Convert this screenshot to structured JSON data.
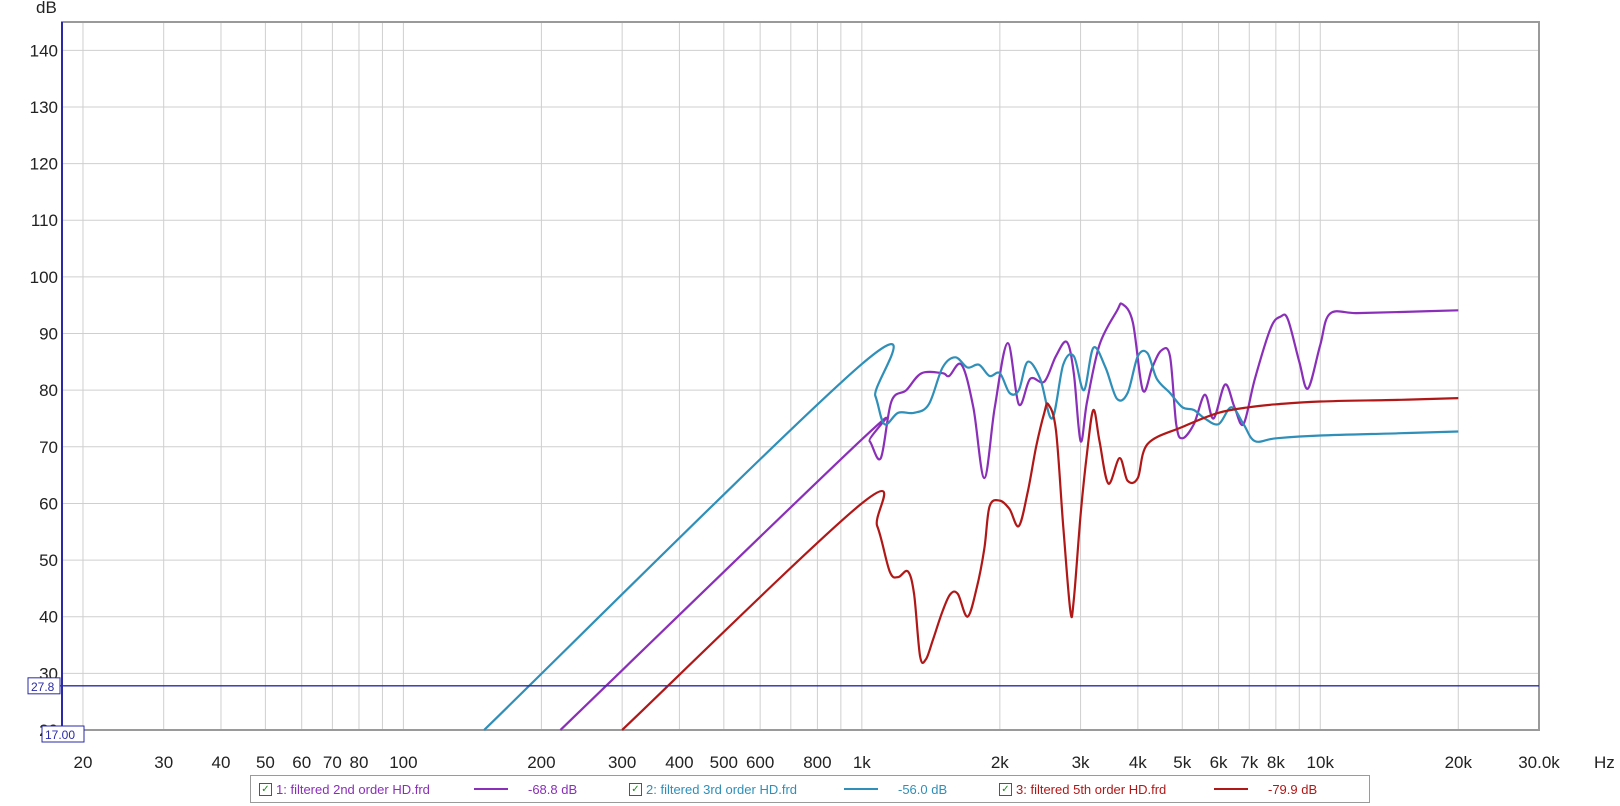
{
  "chart_data": {
    "type": "line",
    "xscale": "log",
    "xlim": [
      18,
      30000
    ],
    "ylim": [
      20,
      145
    ],
    "ylabel": "dB",
    "xunit": "Hz",
    "grid": true,
    "x_ticks": [
      {
        "v": 20,
        "label": "20"
      },
      {
        "v": 30,
        "label": "30"
      },
      {
        "v": 40,
        "label": "40"
      },
      {
        "v": 50,
        "label": "50"
      },
      {
        "v": 60,
        "label": "60"
      },
      {
        "v": 70,
        "label": "70"
      },
      {
        "v": 80,
        "label": "80"
      },
      {
        "v": 100,
        "label": "100"
      },
      {
        "v": 200,
        "label": "200"
      },
      {
        "v": 300,
        "label": "300"
      },
      {
        "v": 400,
        "label": "400"
      },
      {
        "v": 500,
        "label": "500"
      },
      {
        "v": 600,
        "label": "600"
      },
      {
        "v": 800,
        "label": "800"
      },
      {
        "v": 1000,
        "label": "1k"
      },
      {
        "v": 2000,
        "label": "2k"
      },
      {
        "v": 3000,
        "label": "3k"
      },
      {
        "v": 4000,
        "label": "4k"
      },
      {
        "v": 5000,
        "label": "5k"
      },
      {
        "v": 6000,
        "label": "6k"
      },
      {
        "v": 7000,
        "label": "7k"
      },
      {
        "v": 8000,
        "label": "8k"
      },
      {
        "v": 10000,
        "label": "10k"
      },
      {
        "v": 20000,
        "label": "20k"
      },
      {
        "v": 30000,
        "label": "30.0k"
      }
    ],
    "x_gridlines": [
      20,
      30,
      40,
      50,
      60,
      70,
      80,
      90,
      100,
      200,
      300,
      400,
      500,
      600,
      700,
      800,
      900,
      1000,
      2000,
      3000,
      4000,
      5000,
      6000,
      7000,
      8000,
      9000,
      10000,
      20000
    ],
    "y_ticks": [
      20,
      30,
      40,
      50,
      60,
      70,
      80,
      90,
      100,
      110,
      120,
      130,
      140
    ],
    "cursor_y": {
      "value": 27.8,
      "label": "27.8"
    },
    "cursor_x_label": "17.00",
    "series": [
      {
        "name": "1: filtered 2nd order HD.frd",
        "color": "#8a2fb8",
        "legend_value": "-68.8 dB",
        "points": [
          [
            220,
            20
          ],
          [
            1000,
            71.3
          ],
          [
            1040,
            71
          ],
          [
            1100,
            68
          ],
          [
            1160,
            78
          ],
          [
            1250,
            80
          ],
          [
            1350,
            83
          ],
          [
            1500,
            83
          ],
          [
            1550,
            82.5
          ],
          [
            1650,
            84.5
          ],
          [
            1750,
            77
          ],
          [
            1850,
            64.5
          ],
          [
            1950,
            77
          ],
          [
            2080,
            88.3
          ],
          [
            2200,
            77.5
          ],
          [
            2330,
            82
          ],
          [
            2500,
            81.5
          ],
          [
            2650,
            86
          ],
          [
            2800,
            88.5
          ],
          [
            2900,
            83
          ],
          [
            3000,
            71
          ],
          [
            3100,
            78
          ],
          [
            3300,
            88
          ],
          [
            3600,
            94
          ],
          [
            3700,
            95.2
          ],
          [
            3900,
            92
          ],
          [
            4100,
            80
          ],
          [
            4300,
            84
          ],
          [
            4500,
            87
          ],
          [
            4700,
            86
          ],
          [
            4850,
            74
          ],
          [
            5000,
            71.5
          ],
          [
            5300,
            74
          ],
          [
            5600,
            79.2
          ],
          [
            5850,
            75
          ],
          [
            6200,
            81
          ],
          [
            6500,
            77
          ],
          [
            6800,
            74
          ],
          [
            7200,
            82
          ],
          [
            7800,
            91
          ],
          [
            8200,
            93
          ],
          [
            8500,
            92.5
          ],
          [
            9000,
            85
          ],
          [
            9400,
            80.3
          ],
          [
            10000,
            88
          ],
          [
            10500,
            93.5
          ],
          [
            12000,
            93.6
          ],
          [
            15000,
            93.8
          ],
          [
            20000,
            94.1
          ]
        ]
      },
      {
        "name": "2: filtered 3rd order HD.frd",
        "color": "#2f8fb8",
        "legend_value": "-56.0 dB",
        "points": [
          [
            150,
            20
          ],
          [
            1000,
            84.6
          ],
          [
            1070,
            79
          ],
          [
            1120,
            74
          ],
          [
            1200,
            76
          ],
          [
            1300,
            76
          ],
          [
            1400,
            77.5
          ],
          [
            1500,
            84
          ],
          [
            1600,
            85.8
          ],
          [
            1700,
            84
          ],
          [
            1800,
            84.5
          ],
          [
            1900,
            82.5
          ],
          [
            2000,
            83
          ],
          [
            2100,
            79.5
          ],
          [
            2200,
            80
          ],
          [
            2300,
            85
          ],
          [
            2450,
            82
          ],
          [
            2600,
            75
          ],
          [
            2750,
            84.5
          ],
          [
            2900,
            86
          ],
          [
            3050,
            80
          ],
          [
            3200,
            87.5
          ],
          [
            3400,
            84
          ],
          [
            3600,
            78.5
          ],
          [
            3800,
            79.5
          ],
          [
            4000,
            86
          ],
          [
            4200,
            86.5
          ],
          [
            4400,
            82
          ],
          [
            4700,
            79.5
          ],
          [
            5000,
            77
          ],
          [
            5300,
            76.5
          ],
          [
            5600,
            75
          ],
          [
            6000,
            74
          ],
          [
            6400,
            77
          ],
          [
            6800,
            74
          ],
          [
            7200,
            71
          ],
          [
            8000,
            71.5
          ],
          [
            10000,
            72
          ],
          [
            15000,
            72.4
          ],
          [
            20000,
            72.7
          ]
        ]
      },
      {
        "name": "3: filtered 5th order HD.frd",
        "color": "#b01818",
        "legend_value": "-79.9 dB",
        "points": [
          [
            300,
            20
          ],
          [
            1000,
            60
          ],
          [
            1080,
            56
          ],
          [
            1150,
            48
          ],
          [
            1200,
            47
          ],
          [
            1260,
            48
          ],
          [
            1300,
            44
          ],
          [
            1340,
            33
          ],
          [
            1380,
            32.5
          ],
          [
            1430,
            36
          ],
          [
            1500,
            41
          ],
          [
            1560,
            44
          ],
          [
            1620,
            44
          ],
          [
            1700,
            40
          ],
          [
            1780,
            45
          ],
          [
            1850,
            52
          ],
          [
            1900,
            59.5
          ],
          [
            2000,
            60.5
          ],
          [
            2100,
            59
          ],
          [
            2200,
            56
          ],
          [
            2300,
            62
          ],
          [
            2400,
            70
          ],
          [
            2500,
            76
          ],
          [
            2550,
            77.5
          ],
          [
            2650,
            73
          ],
          [
            2750,
            56
          ],
          [
            2850,
            41
          ],
          [
            2900,
            43
          ],
          [
            3000,
            58
          ],
          [
            3100,
            69
          ],
          [
            3200,
            76.5
          ],
          [
            3300,
            71
          ],
          [
            3450,
            63.5
          ],
          [
            3650,
            68
          ],
          [
            3800,
            64
          ],
          [
            4000,
            64.5
          ],
          [
            4200,
            70.5
          ],
          [
            5000,
            73.5
          ],
          [
            6000,
            76
          ],
          [
            7000,
            77
          ],
          [
            8000,
            77.5
          ],
          [
            10000,
            78
          ],
          [
            15000,
            78.3
          ],
          [
            20000,
            78.6
          ]
        ]
      }
    ]
  }
}
